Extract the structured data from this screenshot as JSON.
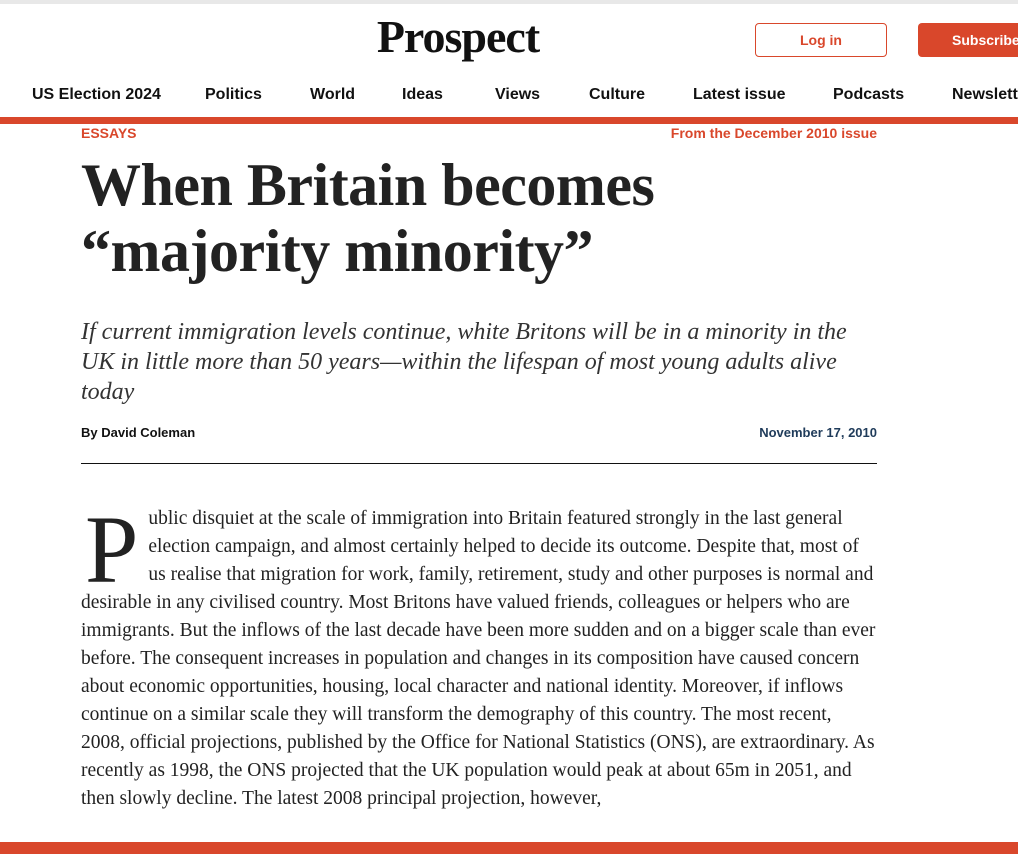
{
  "header": {
    "logo": "Prospect",
    "login": "Log in",
    "subscribe": "Subscribe"
  },
  "nav": [
    "US Election 2024",
    "Politics",
    "World",
    "Ideas",
    "Views",
    "Culture",
    "Latest issue",
    "Podcasts",
    "Newsletters"
  ],
  "article": {
    "category": "ESSAYS",
    "issue": "From the December 2010 issue",
    "title": "When Britain becomes “majority minority”",
    "standfirst": "If current immigration levels continue, white Britons will be in a minority in the UK in little more than 50 years—within the lifespan of most young adults alive today",
    "author": "By David Coleman",
    "date": "November 17, 2010",
    "drop_cap": "P",
    "body": "ublic disquiet at the scale of immigration into Britain featured strongly in the last general election campaign, and almost certainly helped to decide its outcome. Despite that, most of us realise that migration for work, family, retirement, study and other purposes is normal and desirable in any civilised country. Most Britons have valued friends, colleagues or helpers who are immigrants. But the inflows of the last decade have been more sudden and on a bigger scale than ever before. The consequent increases in population and changes in its composition have caused concern about economic opportunities, housing, local character and national identity. Moreover, if inflows continue on a similar scale they will transform the demography of this country. The most recent, 2008, official projections, published by the Office for National Statistics (ONS), are extraordinary. As recently as 1998, the ONS projected that the UK population would peak at about 65m in 2051, and then slowly decline. The latest 2008 principal projection, however,"
  }
}
